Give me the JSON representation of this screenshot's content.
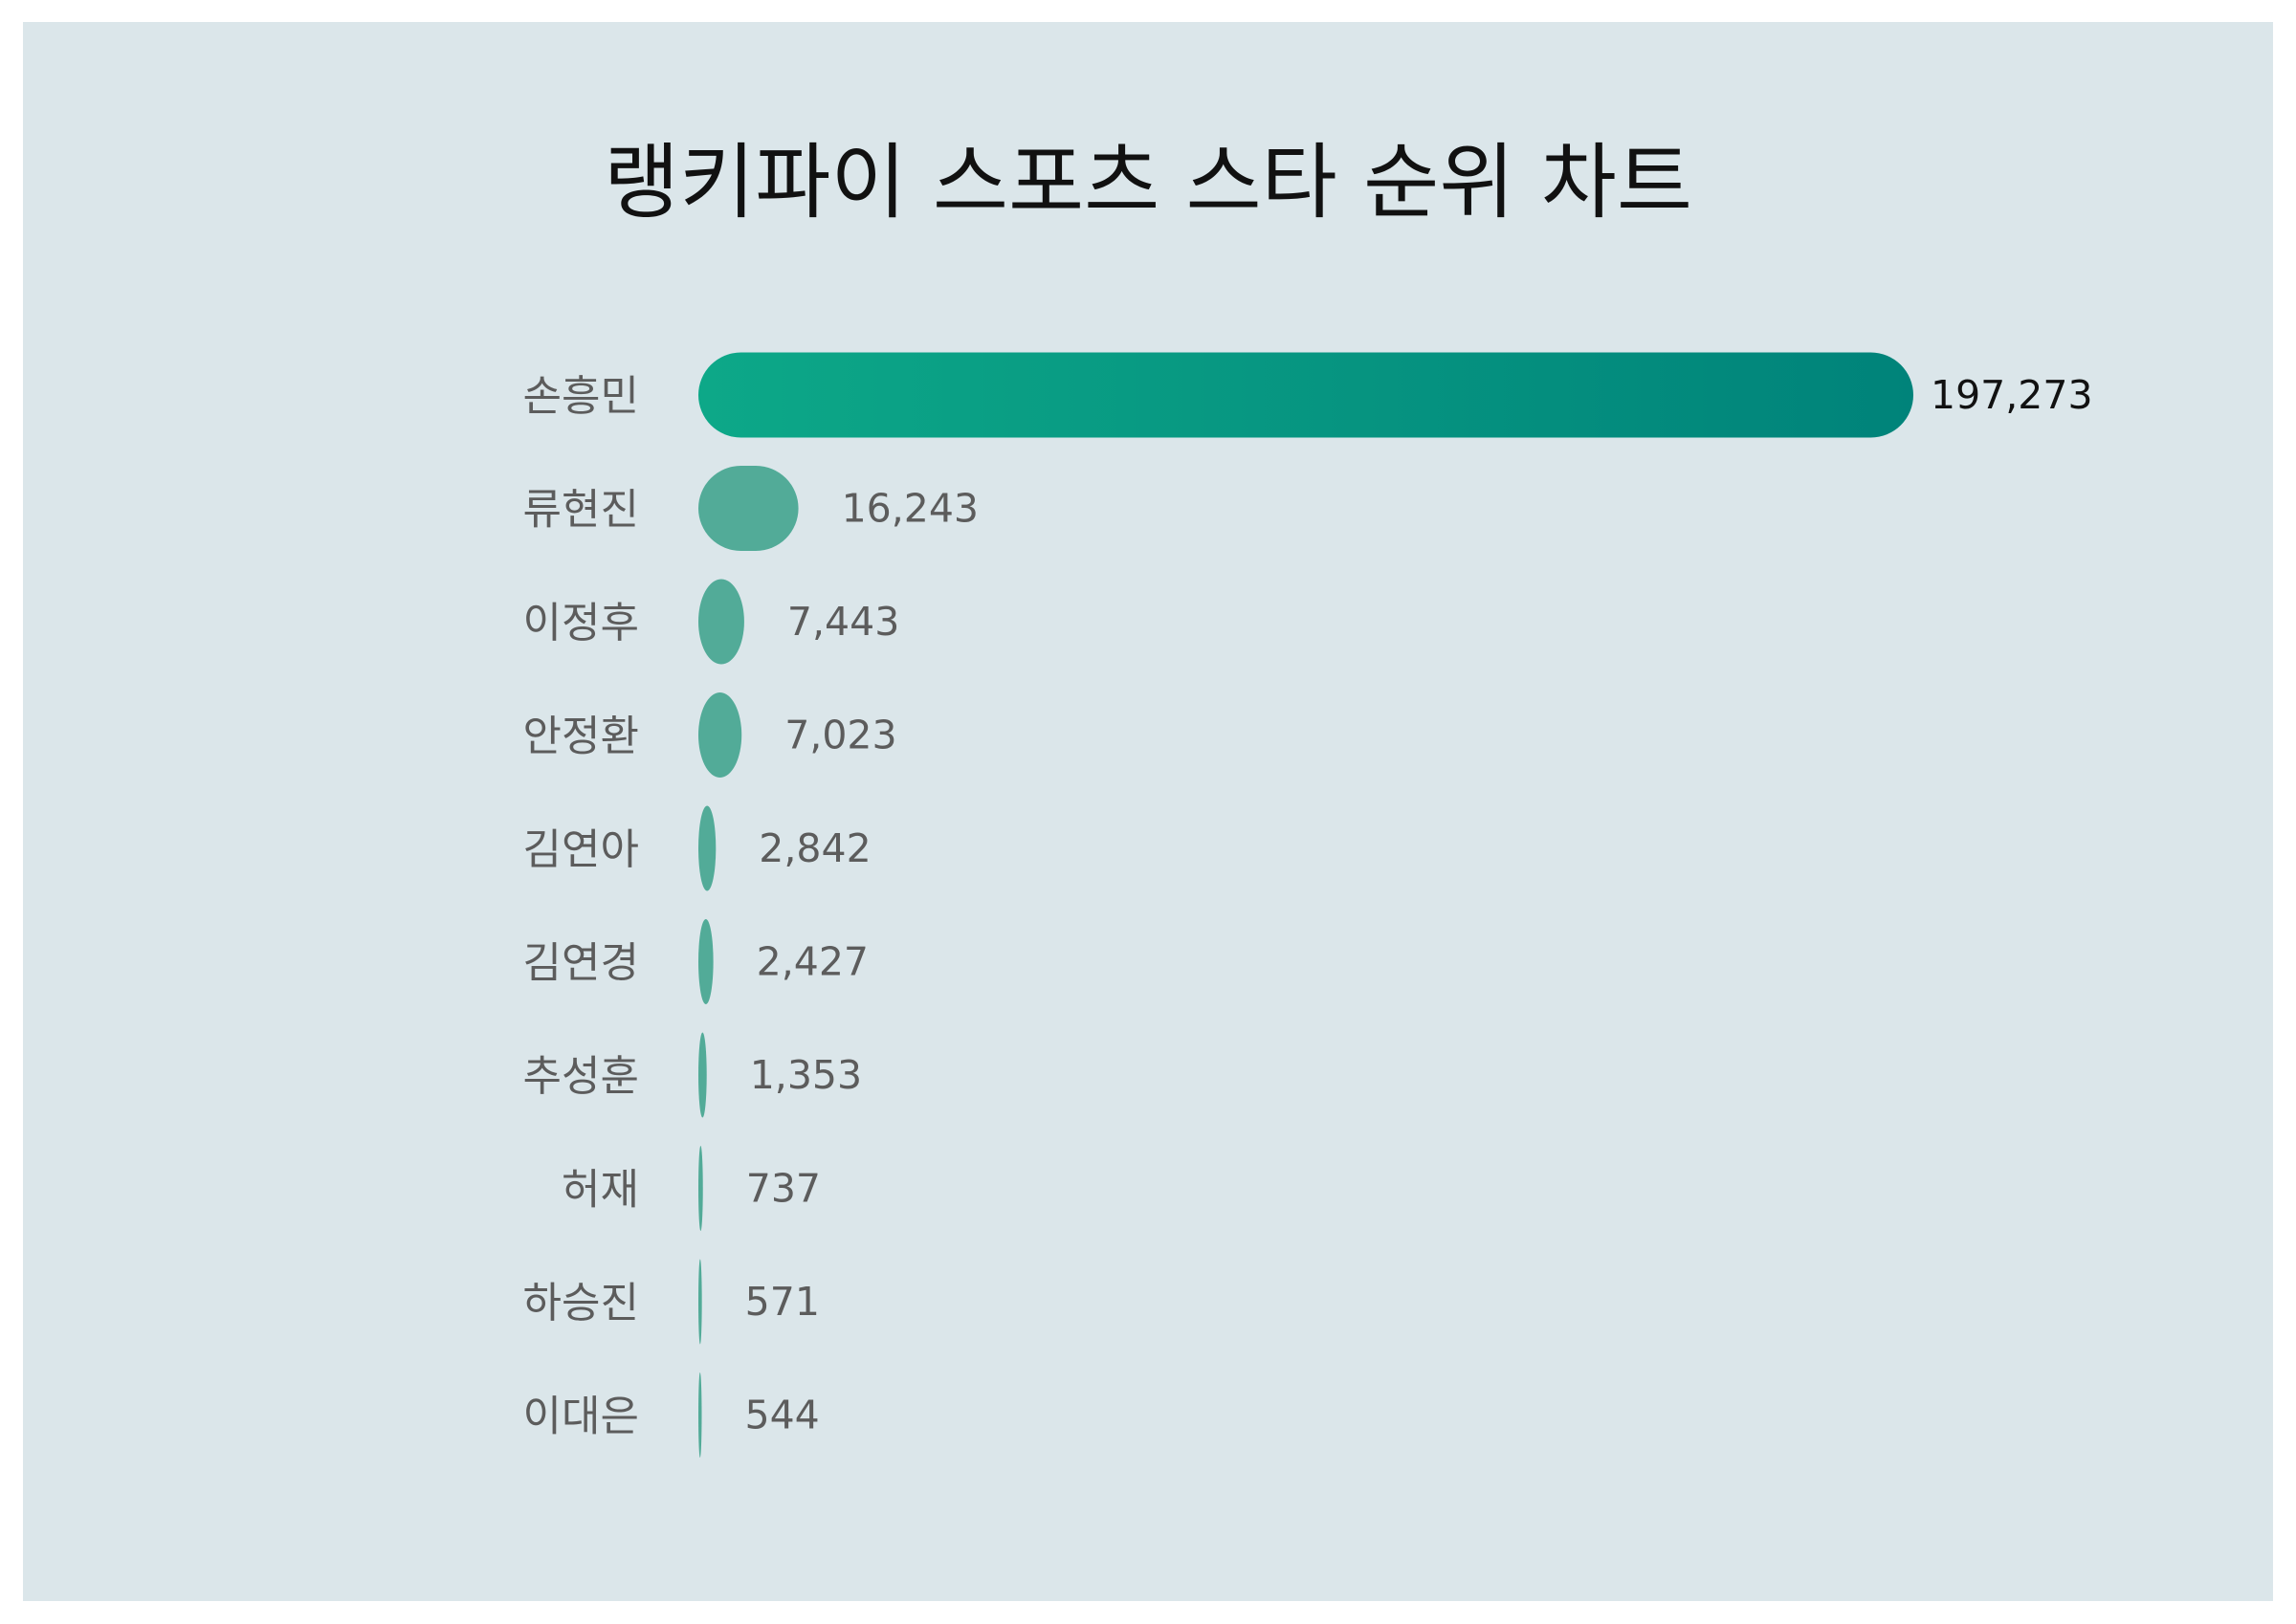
{
  "chart_data": {
    "type": "bar",
    "orientation": "horizontal",
    "title": "랭키파이 스포츠 스타 순위 차트",
    "categories": [
      "손흥민",
      "류현진",
      "이정후",
      "안정환",
      "김연아",
      "김연경",
      "추성훈",
      "허재",
      "하승진",
      "이대은"
    ],
    "values": [
      197273,
      16243,
      7443,
      7023,
      2842,
      2427,
      1353,
      737,
      571,
      544
    ],
    "value_labels": [
      "197,273",
      "16,243",
      "7,443",
      "7,023",
      "2,842",
      "2,427",
      "1,353",
      "737",
      "571",
      "544"
    ],
    "xlim": [
      0,
      197273
    ],
    "xlabel": "",
    "ylabel": "",
    "grid": false,
    "legend": "none"
  },
  "colors": {
    "background": "#dbe6ea",
    "top_bar_gradient_start": "#0da888",
    "top_bar_gradient_end": "#00837a",
    "bar": "#52ab98",
    "title": "#111111",
    "label": "#5c5c5c"
  }
}
